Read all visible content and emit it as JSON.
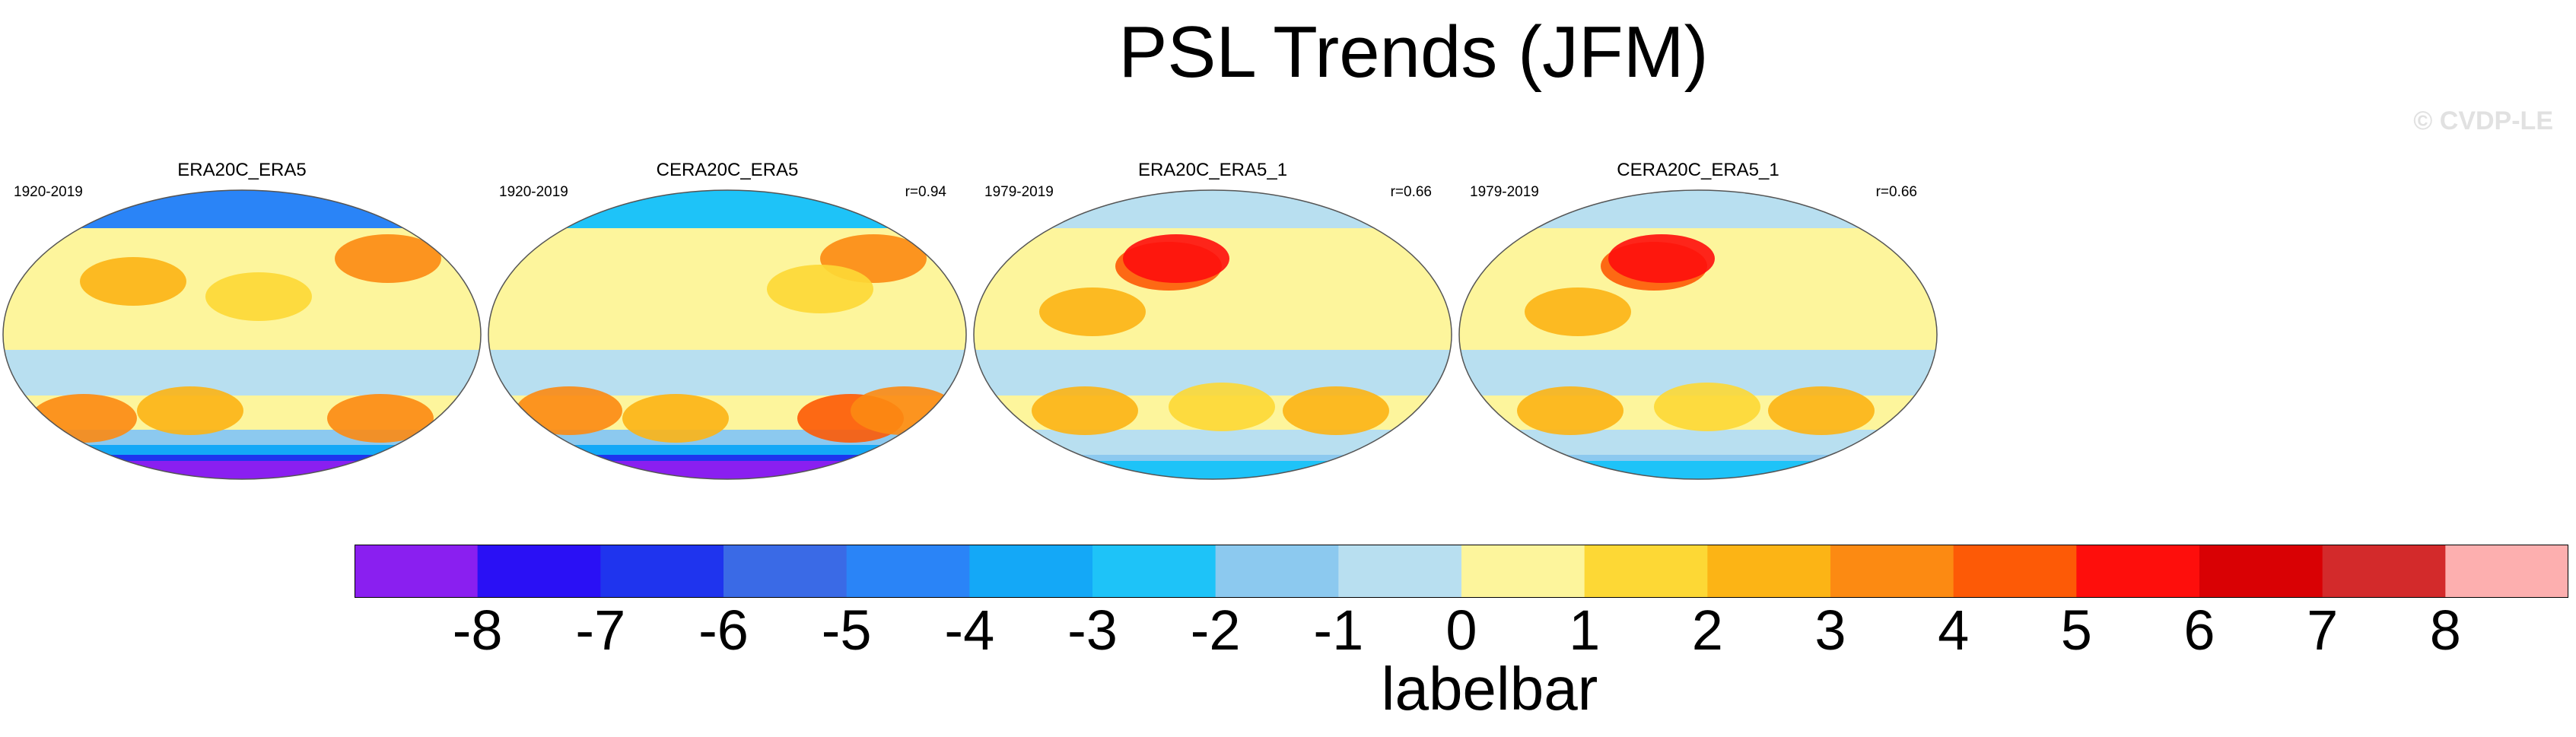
{
  "title": "PSL Trends (JFM)",
  "credit": "© CVDP-LE",
  "panels": [
    {
      "title": "ERA20C_ERA5",
      "years": "1920-2019",
      "r": ""
    },
    {
      "title": "CERA20C_ERA5",
      "years": "1920-2019",
      "r": "r=0.94"
    },
    {
      "title": "ERA20C_ERA5_1",
      "years": "1979-2019",
      "r": "r=0.66"
    },
    {
      "title": "CERA20C_ERA5_1",
      "years": "1979-2019",
      "r": "r=0.66"
    }
  ],
  "colorbar": {
    "title": "labelbar",
    "ticks": [
      "-8",
      "-7",
      "-6",
      "-5",
      "-4",
      "-3",
      "-2",
      "-1",
      "0",
      "1",
      "2",
      "3",
      "4",
      "5",
      "6",
      "7",
      "8"
    ],
    "colors": [
      "#8a1ff0",
      "#2a10f5",
      "#1f34ee",
      "#3a6ae6",
      "#2a84f7",
      "#14a8f7",
      "#1ec3f8",
      "#8cc9ef",
      "#b8dff0",
      "#fdf59c",
      "#fdd835",
      "#fcb415",
      "#fc8a12",
      "#fd5a06",
      "#fe0e0c",
      "#d90104",
      "#d32a2b",
      "#fdafaf"
    ]
  }
}
